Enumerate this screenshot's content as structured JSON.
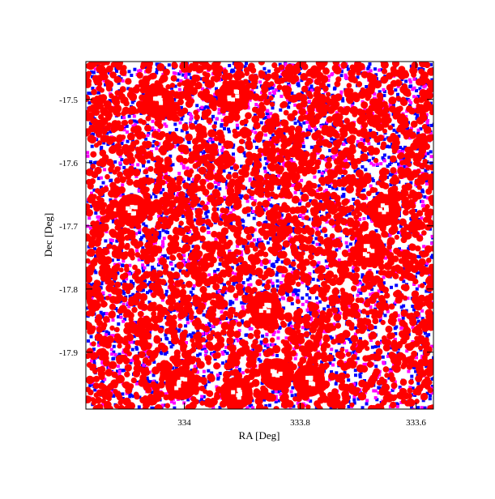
{
  "chart_data": {
    "type": "scatter",
    "title": "",
    "xlabel": "RA [Deg]",
    "ylabel": "Dec [Deg]",
    "x_axis_inverted": true,
    "xlim": [
      334.17,
      333.57
    ],
    "ylim": [
      -17.99,
      -17.44
    ],
    "xticks": [
      334,
      333.8,
      333.6
    ],
    "xtick_labels": [
      "334",
      "333.8",
      "333.6"
    ],
    "yticks": [
      -17.5,
      -17.6,
      -17.7,
      -17.8,
      -17.9
    ],
    "ytick_labels": [
      "-17.5",
      "-17.6",
      "-17.7",
      "-17.8",
      "-17.9"
    ],
    "grid": false,
    "legend": "none",
    "series": [
      {
        "color": "#0000ff",
        "marker": "dense-points"
      },
      {
        "color": "#ff00ff",
        "marker": "dense-points"
      },
      {
        "color": "#ff0000",
        "marker": "filled-circles"
      }
    ],
    "holes": [
      {
        "x": 334.045,
        "y": -17.505
      },
      {
        "x": 333.915,
        "y": -17.495
      },
      {
        "x": 334.09,
        "y": -17.675
      },
      {
        "x": 333.655,
        "y": -17.675
      },
      {
        "x": 333.68,
        "y": -17.74
      },
      {
        "x": 333.86,
        "y": -17.83
      },
      {
        "x": 333.84,
        "y": -17.935
      },
      {
        "x": 333.785,
        "y": -17.945
      },
      {
        "x": 334.005,
        "y": -17.95
      },
      {
        "x": 333.91,
        "y": -17.965
      }
    ]
  }
}
